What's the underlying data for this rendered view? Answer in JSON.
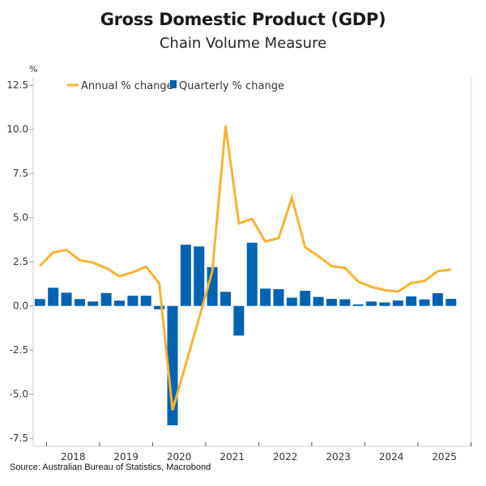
{
  "chart_data": {
    "type": "bar+line",
    "title": "Gross Domestic Product (GDP)",
    "subtitle": "Chain Volume Measure",
    "ylabel": "%",
    "xlabel": "",
    "source": "Source: Australian Bureau of Statistics, Macrobond",
    "ylim": [
      -7.95,
      12.8
    ],
    "yticks": [
      12.5,
      10.0,
      7.5,
      5.0,
      2.5,
      0.0,
      -2.5,
      -5.0,
      -7.5
    ],
    "ytick_labels": [
      "12.5",
      "10.0",
      "7.5",
      "5.0",
      "2.5",
      "0.0",
      "-2.5",
      "-5.0",
      "-7.5"
    ],
    "xtick_labels": [
      "2018",
      "2019",
      "2020",
      "2021",
      "2022",
      "2023",
      "2024",
      "2025"
    ],
    "grid": false,
    "legend_position": "top-left",
    "categories": [
      "2017-Q4",
      "2018-Q1",
      "2018-Q2",
      "2018-Q3",
      "2018-Q4",
      "2019-Q1",
      "2019-Q2",
      "2019-Q3",
      "2019-Q4",
      "2020-Q1",
      "2020-Q2",
      "2020-Q3",
      "2020-Q4",
      "2021-Q1",
      "2021-Q2",
      "2021-Q3",
      "2021-Q4",
      "2022-Q1",
      "2022-Q2",
      "2022-Q3",
      "2022-Q4",
      "2023-Q1",
      "2023-Q2",
      "2023-Q3",
      "2023-Q4",
      "2024-Q1",
      "2024-Q2",
      "2024-Q3",
      "2024-Q4",
      "2025-Q1",
      "2025-Q2",
      "2025-Q3"
    ],
    "series": [
      {
        "name": "Annual % change",
        "type": "line",
        "color": "#f9b233",
        "values": [
          2.27,
          3.03,
          3.17,
          2.59,
          2.45,
          2.14,
          1.68,
          1.91,
          2.22,
          1.27,
          -5.9,
          -3.3,
          -0.7,
          1.96,
          10.2,
          4.67,
          4.93,
          3.65,
          3.84,
          6.13,
          3.32,
          2.82,
          2.25,
          2.16,
          1.38,
          1.08,
          0.89,
          0.81,
          1.3,
          1.41,
          1.97,
          2.06
        ]
      },
      {
        "name": "Quarterly % change",
        "type": "bar",
        "color": "#0063b1",
        "values": [
          0.39,
          1.03,
          0.75,
          0.39,
          0.25,
          0.73,
          0.3,
          0.58,
          0.58,
          -0.19,
          -6.76,
          3.47,
          3.37,
          2.2,
          0.8,
          -1.68,
          3.58,
          0.98,
          0.95,
          0.47,
          0.86,
          0.51,
          0.4,
          0.38,
          0.09,
          0.25,
          0.2,
          0.31,
          0.54,
          0.37,
          0.72,
          0.4
        ]
      }
    ]
  }
}
